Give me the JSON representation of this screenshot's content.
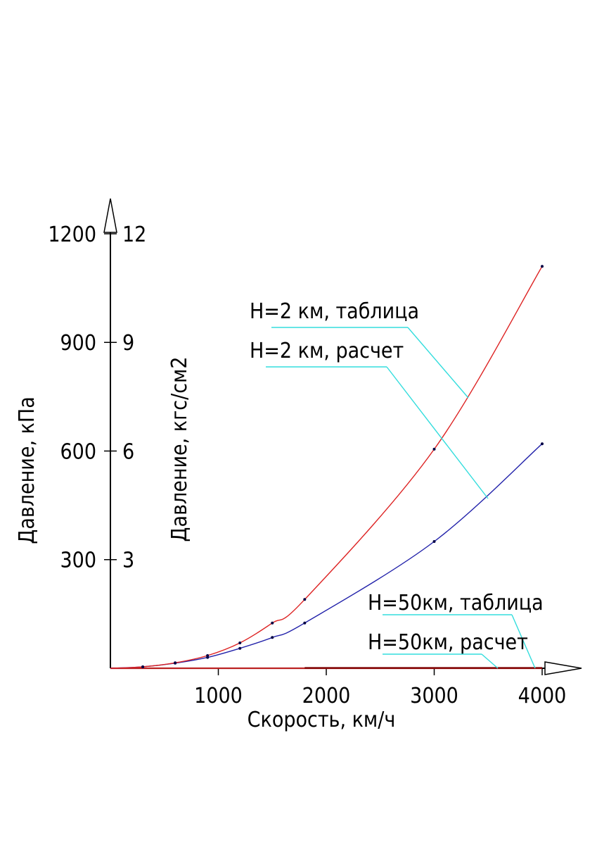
{
  "chart_data": {
    "type": "line",
    "xlabel": "Скорость, км/ч",
    "ylabel_left": "Давление, кПа",
    "ylabel_right": "Давление, кгс/см2",
    "xlim": [
      0,
      4450
    ],
    "ylim": [
      0,
      1200
    ],
    "x_ticks": [
      {
        "value": 1000,
        "label": "1000"
      },
      {
        "value": 2000,
        "label": "2000"
      },
      {
        "value": 3000,
        "label": "3000"
      },
      {
        "value": 4000,
        "label": "4000"
      }
    ],
    "y_ticks": [
      {
        "value": 300,
        "label": "300",
        "label2": "3"
      },
      {
        "value": 600,
        "label": "600",
        "label2": "6"
      },
      {
        "value": 900,
        "label": "900",
        "label2": "9"
      },
      {
        "value": 1200,
        "label": "1200",
        "label2": "12"
      }
    ],
    "grid": false,
    "series": [
      {
        "name": "H=2 км, таблица",
        "color": "#dd2222",
        "x": [
          0,
          300,
          600,
          900,
          1200,
          1500,
          1800,
          3000,
          4000
        ],
        "y": [
          0,
          4,
          15,
          35,
          70,
          125,
          190,
          605,
          1110
        ]
      },
      {
        "name": "H=2 км, расчет",
        "color": "#2222aa",
        "x": [
          0,
          300,
          600,
          900,
          1200,
          1500,
          1800,
          3000,
          4000
        ],
        "y": [
          0,
          4,
          14,
          30,
          55,
          85,
          125,
          350,
          620
        ]
      },
      {
        "name": "H=50км, таблица",
        "color": "#7a0000",
        "x": [
          1800,
          2500,
          3000,
          3500,
          4000
        ],
        "y": [
          1,
          1,
          1,
          1,
          1
        ]
      },
      {
        "name": "H=50км, расчет",
        "color": "#bb2222",
        "x": [
          0,
          1000,
          2000,
          3000,
          4000
        ],
        "y": [
          0,
          0,
          0,
          0,
          0
        ]
      }
    ],
    "legend_color": "#33dddd"
  }
}
